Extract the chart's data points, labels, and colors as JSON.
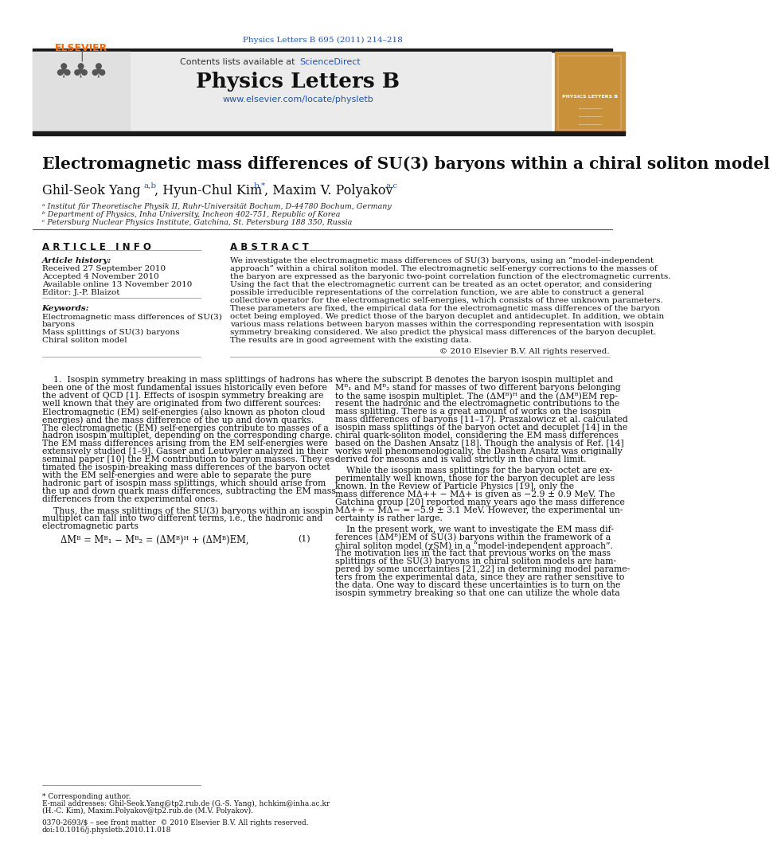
{
  "bg_color": "#ffffff",
  "top_bar_color": "#1a1a1a",
  "journal_citation": "Physics Letters B 695 (2011) 214–218",
  "journal_citation_color": "#2255aa",
  "sciencedirect_color": "#2255aa",
  "journal_name": "Physics Letters B",
  "journal_url": "www.elsevier.com/locate/physletb",
  "journal_url_color": "#2255aa",
  "article_title": "Electromagnetic mass differences of SU(3) baryons within a chiral soliton model",
  "affil_a": "ᵃ Institut für Theoretische Physik II, Ruhr-Universität Bochum, D-44780 Bochum, Germany",
  "affil_b": "ᵇ Department of Physics, Inha University, Incheon 402-751, Republic of Korea",
  "affil_c": "ᶜ Petersburg Nuclear Physics Institute, Gatchina, St. Petersburg 188 350, Russia",
  "article_history_label": "Article history:",
  "received": "Received 27 September 2010",
  "accepted": "Accepted 4 November 2010",
  "available": "Available online 13 November 2010",
  "editor": "Editor: J.-P. Blaizot",
  "keywords_label": "Keywords:",
  "kw1": "Electromagnetic mass differences of SU(3)",
  "kw1b": "baryons",
  "kw2": "Mass splittings of SU(3) baryons",
  "kw3": "Chiral soliton model",
  "abstract_text": "We investigate the electromagnetic mass differences of SU(3) baryons, using an “model-independent approach” within a chiral soliton model. The electromagnetic self-energy corrections to the masses of the baryon are expressed as the baryonic two-point correlation function of the electromagnetic currents. Using the fact that the electromagnetic current can be treated as an octet operator, and considering possible irreducible representations of the correlation function, we are able to construct a general collective operator for the electromagnetic self-energies, which consists of three unknown parameters. These parameters are fixed, the empirical data for the electromagnetic mass differences of the baryon octet being employed. We predict those of the baryon decuplet and antidecuplet. In addition, we obtain various mass relations between baryon masses within the corresponding representation with isospin symmetry breaking considered. We also predict the physical mass differences of the baryon decuplet. The results are in good agreement with the existing data.",
  "copyright": "© 2010 Elsevier B.V. All rights reserved.",
  "footer_text1": "* Corresponding author.",
  "footer_email1": "E-mail addresses: Ghil-Seok.Yang@tp2.rub.de (G.-S. Yang), hchkim@inha.ac.kr",
  "footer_email2": "(H.-C. Kim), Maxim.Polyakov@tp2.rub.de (M.V. Polyakov).",
  "footer_issn": "0370-2693/$ – see front matter  © 2010 Elsevier B.V. All rights reserved.",
  "footer_doi": "doi:10.1016/j.physletb.2010.11.018",
  "elsevier_color": "#ff6600",
  "text_color": "#111111"
}
